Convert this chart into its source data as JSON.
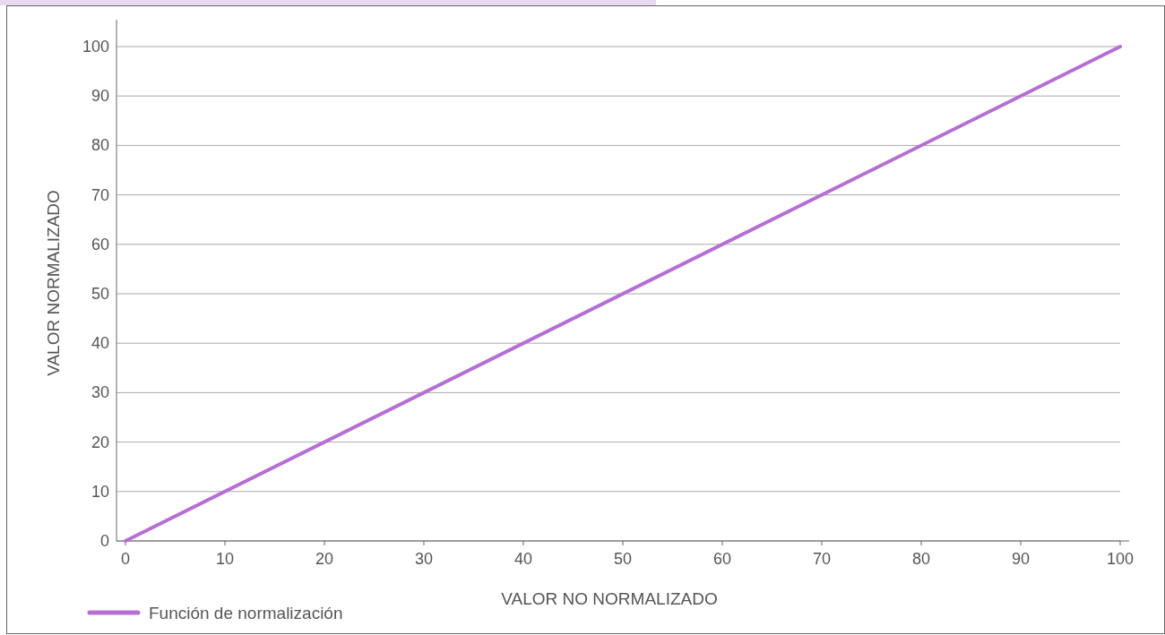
{
  "chart_data": {
    "type": "line",
    "xlabel": "VALOR NO NORMALIZADO",
    "ylabel": "VALOR NORMALIZADO",
    "x": [
      0,
      100
    ],
    "series": [
      {
        "name": "Función de normalización",
        "color": "#b56fd3",
        "values": [
          0,
          100
        ]
      }
    ],
    "xlim": [
      -0.9,
      100.9
    ],
    "ylim": [
      0,
      100
    ],
    "xticks": [
      0,
      10,
      20,
      30,
      40,
      50,
      60,
      70,
      80,
      90,
      100
    ],
    "yticks": [
      0,
      10,
      20,
      30,
      40,
      50,
      60,
      70,
      80,
      90,
      100
    ],
    "grid": "y",
    "legend": "bottom left",
    "marker": "none",
    "line_style": "solid"
  }
}
